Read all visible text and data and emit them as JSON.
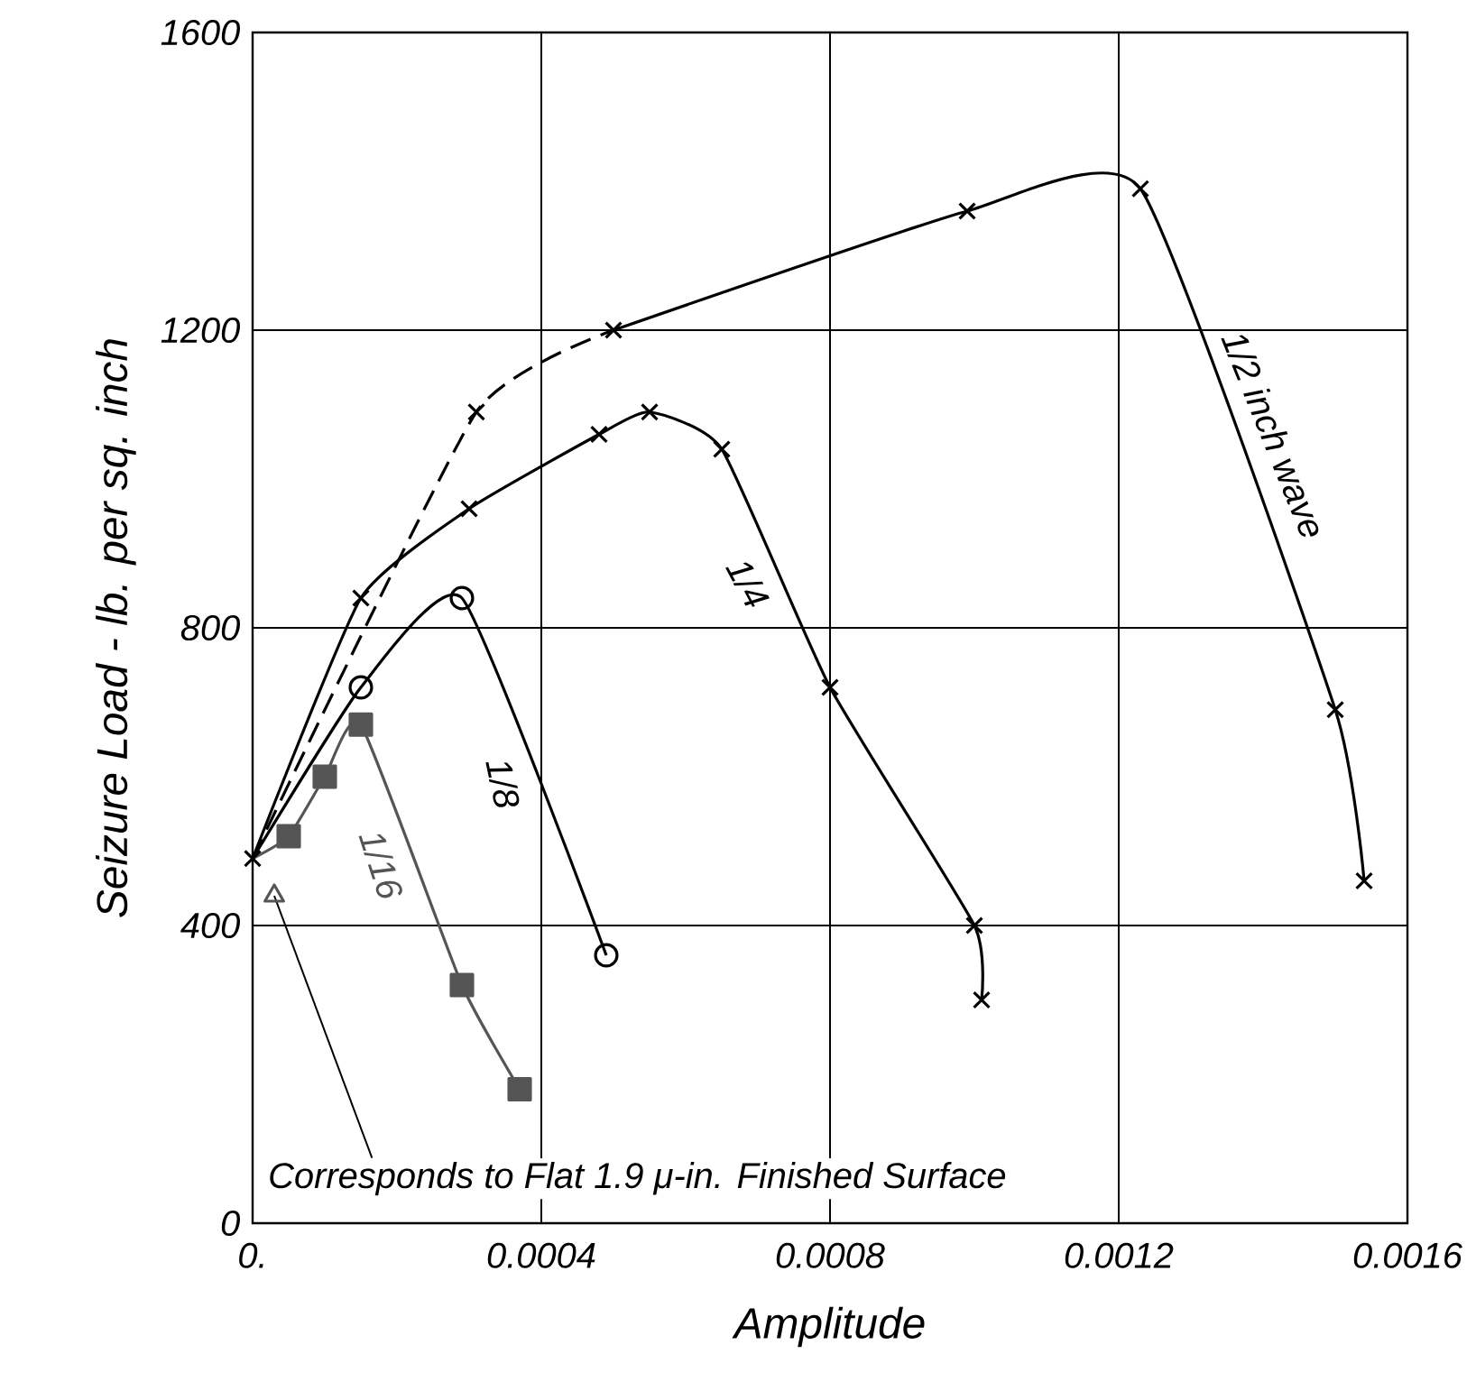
{
  "chart_data": {
    "type": "line",
    "xlabel": "Amplitude",
    "ylabel": "Seizure Load - lb. per sq. inch",
    "xlim": [
      0,
      0.0016
    ],
    "ylim": [
      0,
      1600
    ],
    "xticks": [
      {
        "value": 0,
        "label": "0."
      },
      0.0004,
      0.0008,
      0.0012,
      0.0016
    ],
    "yticks": [
      0,
      400,
      800,
      1200,
      1600
    ],
    "grid": true,
    "legend": false,
    "series": [
      {
        "color": "#000000",
        "marker": "cross",
        "line_style": "dashed",
        "x": [
          0,
          0.00031,
          0.0005
        ],
        "values": [
          490,
          1090,
          1200
        ]
      },
      {
        "name": "1/2 inch wave",
        "color": "#000000",
        "marker": "cross",
        "line_style": "solid",
        "x": [
          0.0005,
          0.00099,
          0.00123,
          0.0015,
          0.00154
        ],
        "values": [
          1200,
          1360,
          1390,
          690,
          460
        ]
      },
      {
        "name": "1/4",
        "color": "#000000",
        "marker": "cross",
        "line_style": "solid",
        "x": [
          0,
          0.00015,
          0.0003,
          0.00048,
          0.00055,
          0.00065,
          0.0008,
          0.001,
          0.00101
        ],
        "values": [
          490,
          840,
          960,
          1060,
          1090,
          1040,
          720,
          400,
          300
        ]
      },
      {
        "name": "1/8",
        "color": "#000000",
        "marker": "circle",
        "line_style": "solid",
        "x": [
          0,
          0.00015,
          0.00029,
          0.00049
        ],
        "values": [
          490,
          720,
          840,
          360
        ]
      },
      {
        "name": "1/16",
        "color": "#555555",
        "marker": "square",
        "line_style": "solid",
        "x": [
          0,
          5e-05,
          0.0001,
          0.00015,
          0.00029,
          0.00037
        ],
        "values": [
          490,
          520,
          600,
          670,
          320,
          180
        ]
      },
      {
        "type": "scatter",
        "color": "#555555",
        "marker": "triangle",
        "x": [
          3e-05
        ],
        "values": [
          440
        ]
      }
    ],
    "annotations": [
      {
        "text": "Corresponds to Flat 1.9 μ-in. Finished Surface",
        "x": 3e-05,
        "y": 440
      }
    ]
  }
}
